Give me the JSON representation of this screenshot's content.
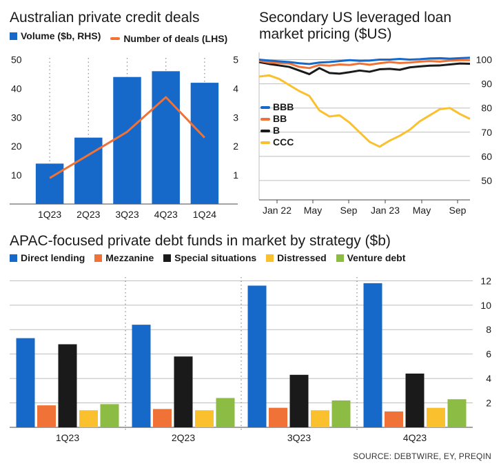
{
  "colors": {
    "blue": "#1668c9",
    "orange": "#f07236",
    "black": "#1a1a1a",
    "yellow": "#fbc02d",
    "green": "#8cbc44",
    "grid": "#bdbdbd"
  },
  "chart_data": [
    {
      "type": "bar",
      "title": "Australian private credit deals",
      "categories": [
        "1Q23",
        "2Q23",
        "3Q23",
        "4Q23",
        "1Q24"
      ],
      "series": [
        {
          "name": "Volume ($b, RHS)",
          "type": "bar",
          "axis": "right",
          "values": [
            1.4,
            2.3,
            4.4,
            4.6,
            4.2
          ]
        },
        {
          "name": "Number of deals (LHS)",
          "type": "line",
          "axis": "left",
          "values": [
            9,
            17,
            25,
            37,
            23
          ]
        }
      ],
      "left_axis": {
        "ticks": [
          "10",
          "20",
          "30",
          "40",
          "50"
        ],
        "ylim": [
          0,
          53
        ]
      },
      "right_axis": {
        "ticks": [
          "1",
          "2",
          "3",
          "4",
          "5"
        ],
        "ylim": [
          0,
          5.3
        ]
      },
      "grid": "vertical dotted",
      "legend": "top"
    },
    {
      "type": "line",
      "title": "Secondary US leveraged loan market pricing ($US)",
      "x_ticks": [
        "Jan 22",
        "May",
        "Sep",
        "Jan 23",
        "May",
        "Sep"
      ],
      "y_ticks": [
        "50",
        "60",
        "70",
        "80",
        "90",
        "100"
      ],
      "ylim": [
        42,
        103
      ],
      "grid": "horizontal",
      "legend": "left",
      "series": [
        {
          "name": "BBB",
          "color": "blue",
          "values": [
            100,
            99.6,
            99.3,
            99,
            98.5,
            98.2,
            98.8,
            99,
            99.4,
            99.8,
            99.5,
            99.6,
            100,
            100,
            100.3,
            100,
            100.2,
            100.5,
            100.6,
            100.4,
            100.6,
            100.8
          ]
        },
        {
          "name": "BB",
          "color": "orange",
          "values": [
            99.5,
            98.8,
            98.6,
            98.4,
            97,
            96.5,
            97.8,
            97.5,
            98,
            97.8,
            98.4,
            97.9,
            98.5,
            99,
            98.6,
            98.8,
            99.2,
            99.4,
            99.2,
            99.6,
            99.8,
            99.8
          ]
        },
        {
          "name": "B",
          "color": "black",
          "values": [
            99,
            98.2,
            97.6,
            97,
            95.5,
            94,
            96.5,
            94.5,
            94.2,
            94.8,
            95.5,
            95,
            96,
            96.2,
            95.8,
            96.8,
            97.2,
            97.5,
            97.6,
            98,
            98.4,
            98.3
          ]
        },
        {
          "name": "CCC",
          "color": "yellow",
          "values": [
            93,
            93.5,
            92,
            89.5,
            87,
            85,
            79,
            76.5,
            77,
            74,
            70,
            66,
            64,
            66.5,
            68.5,
            71,
            74.5,
            77,
            79.5,
            80,
            77.5,
            75.5
          ]
        }
      ]
    },
    {
      "type": "bar",
      "title": "APAC-focused private debt funds in market by strategy ($b)",
      "categories": [
        "1Q23",
        "2Q23",
        "3Q23",
        "4Q23"
      ],
      "series": [
        {
          "name": "Direct lending",
          "color": "blue",
          "values": [
            7.3,
            8.4,
            11.6,
            11.8
          ]
        },
        {
          "name": "Mezzanine",
          "color": "orange",
          "values": [
            1.8,
            1.5,
            1.6,
            1.3
          ]
        },
        {
          "name": "Special situations",
          "color": "black",
          "values": [
            6.8,
            5.8,
            4.3,
            4.4
          ]
        },
        {
          "name": "Distressed",
          "color": "yellow",
          "values": [
            1.4,
            1.4,
            1.4,
            1.6
          ]
        },
        {
          "name": "Venture debt",
          "color": "green",
          "values": [
            1.9,
            2.4,
            2.2,
            2.3
          ]
        }
      ],
      "y_ticks": [
        "2",
        "4",
        "6",
        "8",
        "10",
        "12"
      ],
      "ylim": [
        0,
        12.3
      ],
      "grid": "horizontal",
      "legend": "top"
    }
  ],
  "source": "SOURCE: DEBTWIRE, EY, PREQIN"
}
